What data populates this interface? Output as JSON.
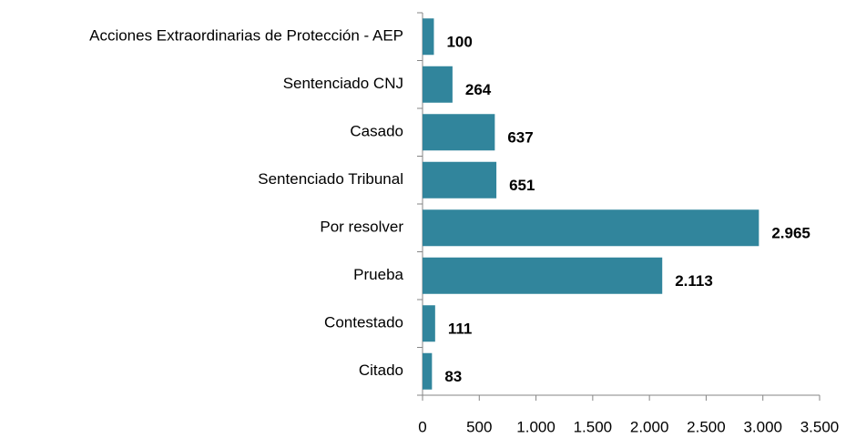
{
  "chart_data": {
    "type": "hbar",
    "categories": [
      "Acciones Extraordinarias de Protección - AEP",
      "Sentenciado CNJ",
      "Casado",
      "Sentenciado Tribunal",
      "Por resolver",
      "Prueba",
      "Contestado",
      "Citado"
    ],
    "values": [
      100,
      264,
      637,
      651,
      2965,
      2113,
      111,
      83
    ],
    "value_labels": [
      "100",
      "264",
      "637",
      "651",
      "2.965",
      "2.113",
      "111",
      "83"
    ],
    "color": "#31859c",
    "xlim": [
      0,
      3500
    ],
    "xticks": [
      0,
      500,
      {
        "value": 1000,
        "label": "1.000"
      },
      {
        "value": 1500,
        "label": "1.500"
      },
      {
        "value": 2000,
        "label": "2.000"
      },
      {
        "value": 2500,
        "label": "2.500"
      },
      {
        "value": 3000,
        "label": "3.000"
      },
      {
        "value": 3500,
        "label": "3.500"
      }
    ]
  }
}
